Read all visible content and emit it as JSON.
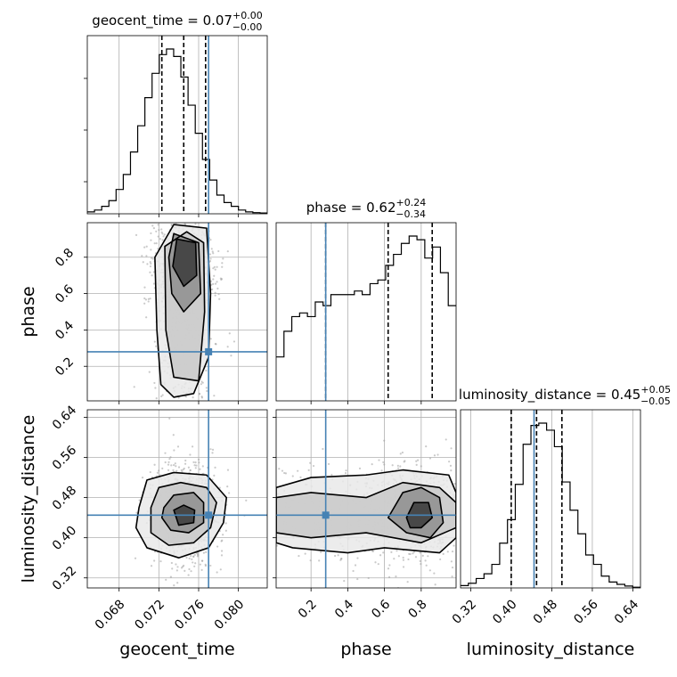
{
  "chart_data": {
    "type": "corner",
    "parameters": [
      "geocent_time",
      "phase",
      "luminosity_distance"
    ],
    "axis_labels": [
      "geocent_time",
      "phase",
      "luminosity_distance"
    ],
    "ranges": [
      [
        0.0648,
        0.0829
      ],
      [
        0.01,
        0.99
      ],
      [
        0.3,
        0.655
      ]
    ],
    "ticks": [
      [
        0.068,
        0.072,
        0.076,
        0.08
      ],
      [
        0.2,
        0.4,
        0.6,
        0.8
      ],
      [
        0.32,
        0.4,
        0.48,
        0.56,
        0.64
      ]
    ],
    "tick_labels": [
      [
        "0.068",
        "0.072",
        "0.076",
        "0.080"
      ],
      [
        "0.2",
        "0.4",
        "0.6",
        "0.8"
      ],
      [
        "0.32",
        "0.40",
        "0.48",
        "0.56",
        "0.64"
      ]
    ],
    "truths": [
      0.077,
      0.28,
      0.445
    ],
    "truth_color": "#4682b4",
    "grid": true,
    "titles": [
      {
        "prefix": "geocent_time = 0.07",
        "sup": "+0.00",
        "sub": "−0.00"
      },
      {
        "prefix": "phase = 0.62",
        "sup": "+0.24",
        "sub": "−0.34"
      },
      {
        "prefix": "luminosity_distance = 0.45",
        "sup": "+0.05",
        "sub": "−0.05"
      }
    ],
    "quantiles": [
      [
        0.0723,
        0.0745,
        0.0767
      ],
      [
        0.28,
        0.62,
        0.86
      ],
      [
        0.4,
        0.45,
        0.5
      ]
    ],
    "histograms": [
      {
        "counts": [
          0.5,
          1,
          2,
          3.5,
          6.5,
          10.5,
          16.5,
          23.5,
          31,
          37.5,
          42.5,
          44,
          42,
          36.5,
          29,
          21.5,
          14.5,
          9,
          5,
          3,
          2,
          1,
          0.5,
          0.3,
          0.2
        ]
      },
      {
        "counts": [
          12,
          19,
          23,
          24,
          23,
          27,
          26,
          29,
          29,
          29,
          30,
          29,
          32,
          33,
          37,
          40,
          43,
          45,
          44,
          39,
          42,
          35,
          26
        ]
      },
      {
        "counts": [
          1,
          2,
          4,
          6,
          10,
          19,
          29,
          44,
          61,
          69,
          70,
          67,
          60,
          45,
          33,
          23,
          14,
          10,
          5,
          2.5,
          1.5,
          0.8,
          0.3
        ]
      }
    ],
    "contours": [
      {
        "x_param": "geocent_time",
        "y_param": "phase",
        "levels": [
          [
            [
              0.0755,
              0.05
            ],
            [
              0.077,
              0.25
            ],
            [
              0.0772,
              0.6
            ],
            [
              0.0768,
              0.96
            ],
            [
              0.0735,
              0.98
            ],
            [
              0.0716,
              0.8
            ],
            [
              0.0718,
              0.4
            ],
            [
              0.0722,
              0.1
            ],
            [
              0.0735,
              0.03
            ],
            [
              0.0755,
              0.05
            ]
          ],
          [
            [
              0.076,
              0.12
            ],
            [
              0.0766,
              0.5
            ],
            [
              0.0765,
              0.88
            ],
            [
              0.0748,
              0.94
            ],
            [
              0.0726,
              0.86
            ],
            [
              0.0727,
              0.4
            ],
            [
              0.0735,
              0.14
            ],
            [
              0.076,
              0.12
            ]
          ],
          [
            [
              0.0762,
              0.6
            ],
            [
              0.076,
              0.88
            ],
            [
              0.0735,
              0.93
            ],
            [
              0.073,
              0.8
            ],
            [
              0.0733,
              0.6
            ],
            [
              0.0745,
              0.5
            ],
            [
              0.0762,
              0.6
            ]
          ],
          [
            [
              0.0758,
              0.7
            ],
            [
              0.0757,
              0.88
            ],
            [
              0.0738,
              0.9
            ],
            [
              0.0734,
              0.75
            ],
            [
              0.0745,
              0.64
            ],
            [
              0.0758,
              0.7
            ]
          ]
        ]
      },
      {
        "x_param": "geocent_time",
        "y_param": "luminosity_distance",
        "levels": [
          [
            [
              0.07,
              0.46
            ],
            [
              0.0708,
              0.515
            ],
            [
              0.0735,
              0.53
            ],
            [
              0.0768,
              0.525
            ],
            [
              0.0788,
              0.48
            ],
            [
              0.0785,
              0.43
            ],
            [
              0.077,
              0.38
            ],
            [
              0.074,
              0.36
            ],
            [
              0.0708,
              0.38
            ],
            [
              0.0697,
              0.42
            ],
            [
              0.07,
              0.46
            ]
          ],
          [
            [
              0.0712,
              0.46
            ],
            [
              0.072,
              0.5
            ],
            [
              0.0742,
              0.51
            ],
            [
              0.0768,
              0.5
            ],
            [
              0.0778,
              0.47
            ],
            [
              0.0772,
              0.42
            ],
            [
              0.0755,
              0.39
            ],
            [
              0.073,
              0.385
            ],
            [
              0.0712,
              0.41
            ],
            [
              0.0712,
              0.46
            ]
          ],
          [
            [
              0.0725,
              0.46
            ],
            [
              0.0735,
              0.485
            ],
            [
              0.0755,
              0.49
            ],
            [
              0.0765,
              0.47
            ],
            [
              0.0765,
              0.43
            ],
            [
              0.075,
              0.41
            ],
            [
              0.0732,
              0.415
            ],
            [
              0.0723,
              0.44
            ],
            [
              0.0725,
              0.46
            ]
          ],
          [
            [
              0.0735,
              0.455
            ],
            [
              0.0745,
              0.465
            ],
            [
              0.0756,
              0.455
            ],
            [
              0.0755,
              0.43
            ],
            [
              0.074,
              0.425
            ],
            [
              0.0735,
              0.455
            ]
          ]
        ]
      },
      {
        "x_param": "phase",
        "y_param": "luminosity_distance",
        "levels": [
          [
            [
              0.01,
              0.5
            ],
            [
              0.2,
              0.52
            ],
            [
              0.5,
              0.525
            ],
            [
              0.7,
              0.535
            ],
            [
              0.95,
              0.525
            ],
            [
              0.99,
              0.49
            ],
            [
              0.99,
              0.4
            ],
            [
              0.9,
              0.37
            ],
            [
              0.6,
              0.38
            ],
            [
              0.4,
              0.37
            ],
            [
              0.1,
              0.38
            ],
            [
              0.01,
              0.39
            ]
          ],
          [
            [
              0.01,
              0.48
            ],
            [
              0.2,
              0.49
            ],
            [
              0.5,
              0.48
            ],
            [
              0.7,
              0.51
            ],
            [
              0.9,
              0.5
            ],
            [
              0.99,
              0.47
            ],
            [
              0.99,
              0.42
            ],
            [
              0.8,
              0.39
            ],
            [
              0.5,
              0.41
            ],
            [
              0.2,
              0.4
            ],
            [
              0.01,
              0.41
            ]
          ],
          [
            [
              0.62,
              0.44
            ],
            [
              0.7,
              0.49
            ],
            [
              0.8,
              0.5
            ],
            [
              0.9,
              0.48
            ],
            [
              0.92,
              0.43
            ],
            [
              0.85,
              0.4
            ],
            [
              0.72,
              0.41
            ],
            [
              0.62,
              0.44
            ]
          ],
          [
            [
              0.72,
              0.44
            ],
            [
              0.76,
              0.47
            ],
            [
              0.84,
              0.47
            ],
            [
              0.86,
              0.44
            ],
            [
              0.8,
              0.42
            ],
            [
              0.74,
              0.42
            ],
            [
              0.72,
              0.44
            ]
          ]
        ]
      }
    ]
  }
}
